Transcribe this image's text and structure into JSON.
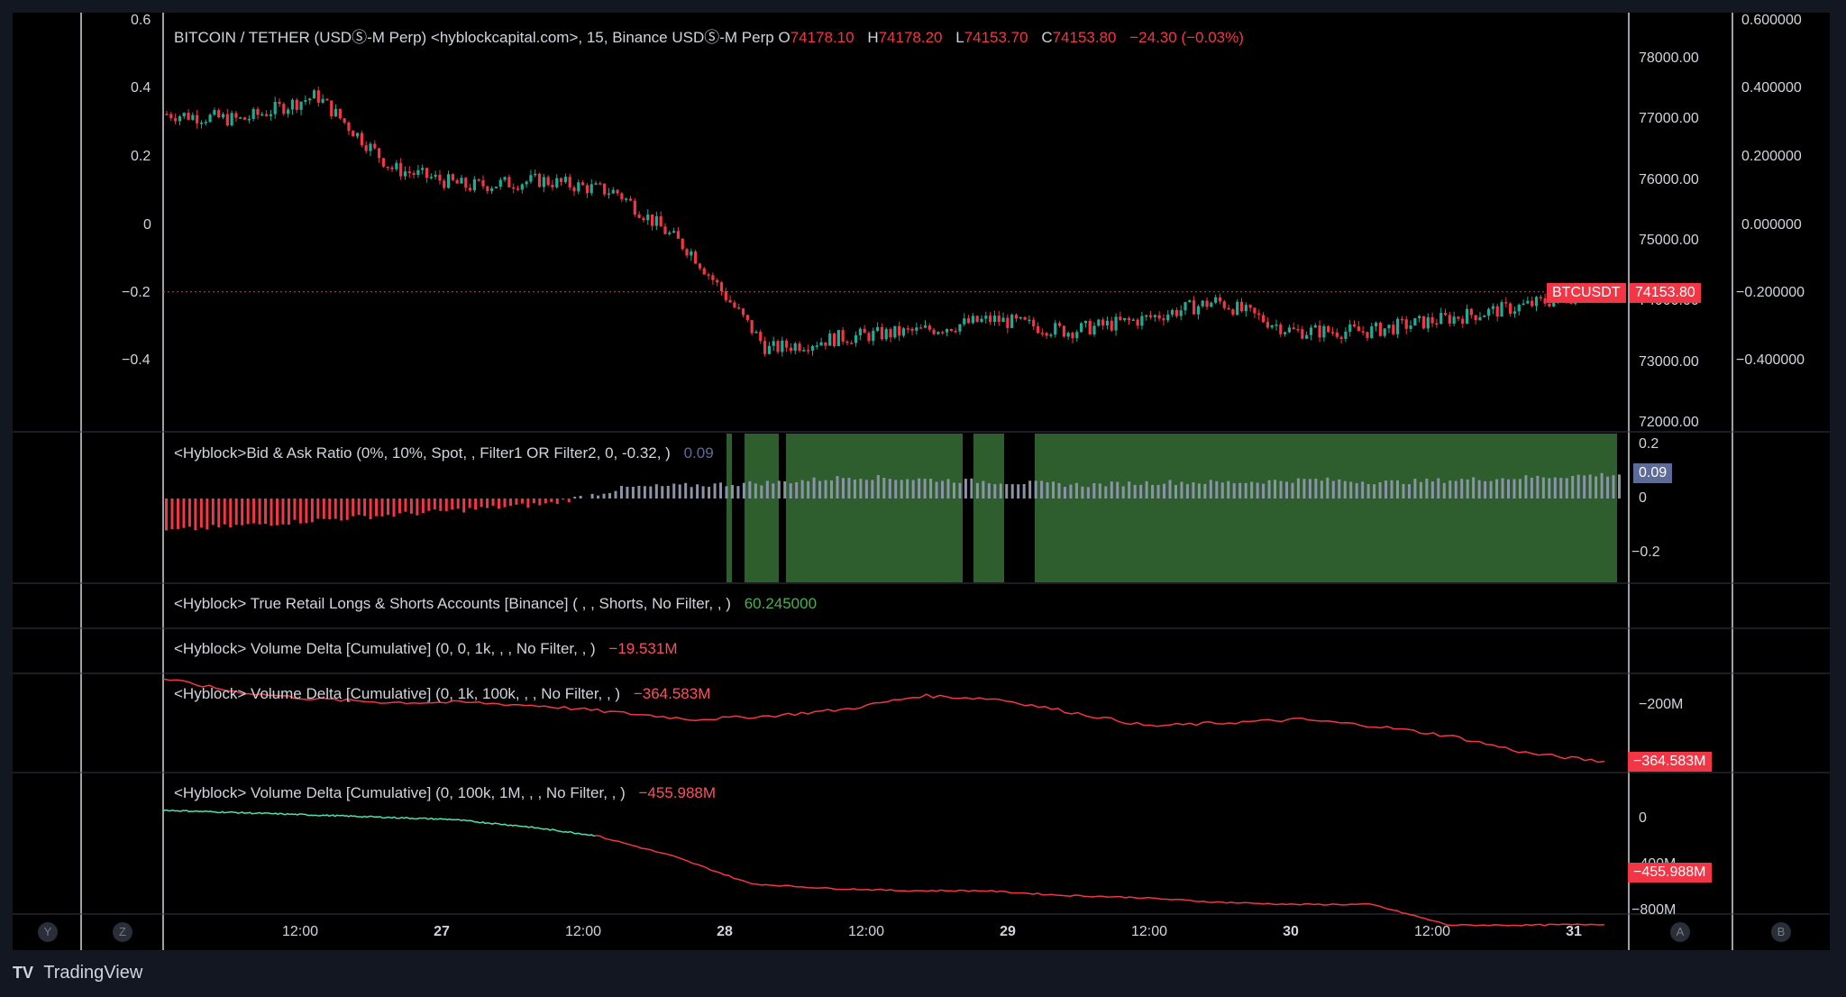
{
  "main": {
    "title": "BITCOIN / TETHER (USDⓈ-M Perp) <hyblockcapital.com>, 15, Binance USDⓈ-M Perp",
    "ohlc": [
      {
        "k": "O",
        "v": "74178.10"
      },
      {
        "k": "H",
        "v": "74178.20"
      },
      {
        "k": "L",
        "v": "74153.70"
      },
      {
        "k": "C",
        "v": "74153.80"
      }
    ],
    "change": "−24.30 (−0.03%)",
    "symbol_tag": "BTCUSDT",
    "price_tag": "74153.80",
    "left_ticks": [
      "0.6",
      "0.4",
      "0.2",
      "0",
      "−0.2",
      "−0.4"
    ],
    "price_ticks": [
      "78000.00",
      "77000.00",
      "76000.00",
      "75000.00",
      "74000.00",
      "73000.00",
      "72000.00"
    ],
    "far_ticks": [
      "0.600000",
      "0.400000",
      "0.200000",
      "0.000000",
      "−0.200000",
      "−0.400000"
    ]
  },
  "bid_ask": {
    "title": "<Hyblock>Bid & Ask Ratio (0%, 10%, Spot, , Filter1 OR Filter2, 0, -0.32, )",
    "value": "0.09",
    "ticks": [
      "0.2",
      "0",
      "−0.2"
    ],
    "value_tag": "0.09"
  },
  "retail": {
    "title": "<Hyblock> True Retail Longs & Shorts Accounts [Binance] ( , , Shorts, No Filter, , )",
    "value": "60.245000"
  },
  "vd1": {
    "title": "<Hyblock> Volume Delta [Cumulative] (0, 0, 1k, , , No Filter, , )",
    "value": "−19.531M"
  },
  "vd2": {
    "title": "<Hyblock> Volume Delta [Cumulative] (0, 1k, 100k, , , No Filter, , )",
    "value": "−364.583M",
    "ticks": [
      "−200M"
    ],
    "value_tag": "−364.583M"
  },
  "vd3": {
    "title": "<Hyblock> Volume Delta [Cumulative] (0, 100k, 1M, , , No Filter, , )",
    "value": "−455.988M",
    "ticks": [
      "0",
      "−400M",
      "−800M"
    ],
    "value_tag": "−455.988M"
  },
  "time_axis": [
    {
      "label": "12:00",
      "bold": false
    },
    {
      "label": "27",
      "bold": true
    },
    {
      "label": "12:00",
      "bold": false
    },
    {
      "label": "28",
      "bold": true
    },
    {
      "label": "12:00",
      "bold": false
    },
    {
      "label": "29",
      "bold": true
    },
    {
      "label": "12:00",
      "bold": false
    },
    {
      "label": "30",
      "bold": true
    },
    {
      "label": "12:00",
      "bold": false
    },
    {
      "label": "31",
      "bold": true
    }
  ],
  "buttons": {
    "y": "Y",
    "z": "Z",
    "a": "A",
    "b": "B"
  },
  "footer": {
    "brand": "TradingView",
    "logo": "TV"
  },
  "colors": {
    "up": "#22ab94",
    "down": "#f23645",
    "green_bg": "#2e5e2e",
    "gray_bar": "#8a94a6",
    "mint": "#4fe0b0",
    "tag_blue": "#5d6b98"
  },
  "chart_data": [
    {
      "type": "candlestick",
      "title": "BITCOIN / TETHER (USDⓈ-M Perp), 15",
      "x": [
        "26 06:00",
        "26 12:00",
        "26 18:00",
        "27 00:00",
        "27 06:00",
        "27 12:00",
        "27 18:00",
        "28 00:00",
        "28 06:00",
        "28 12:00",
        "28 18:00",
        "29 00:00",
        "29 06:00",
        "29 12:00",
        "29 18:00",
        "30 00:00",
        "30 06:00",
        "30 12:00",
        "30 18:00",
        "31 00:00"
      ],
      "close": [
        77100,
        77000,
        77400,
        76200,
        75900,
        76000,
        75800,
        74800,
        73200,
        73400,
        73500,
        73700,
        73500,
        73700,
        74000,
        73500,
        73500,
        73700,
        73900,
        74153.8
      ],
      "ylim": [
        72000,
        78500
      ]
    },
    {
      "type": "bar",
      "title": "Bid & Ask Ratio",
      "values_profile": [
        -0.12,
        -0.1,
        -0.08,
        -0.06,
        -0.04,
        -0.02,
        0.04,
        0.05,
        0.06,
        0.08,
        0.07,
        0.06,
        0.05,
        0.06,
        0.06,
        0.07,
        0.06,
        0.07,
        0.08,
        0.09
      ],
      "ylim": [
        -0.25,
        0.25
      ]
    },
    {
      "type": "line",
      "title": "Volume Delta [Cumulative] (0, 1k, 100k)",
      "values": [
        -120,
        -160,
        -180,
        -190,
        -190,
        -200,
        -220,
        -240,
        -230,
        -210,
        -170,
        -180,
        -220,
        -260,
        -250,
        -240,
        -260,
        -290,
        -340,
        -364.583
      ]
    },
    {
      "type": "line",
      "title": "Volume Delta [Cumulative] (0, 100k, 1M)",
      "values": [
        40,
        30,
        20,
        10,
        0,
        -30,
        -70,
        -160,
        -280,
        -300,
        -310,
        -310,
        -330,
        -340,
        -360,
        -370,
        -370,
        -460,
        -460,
        -455.988
      ]
    }
  ]
}
